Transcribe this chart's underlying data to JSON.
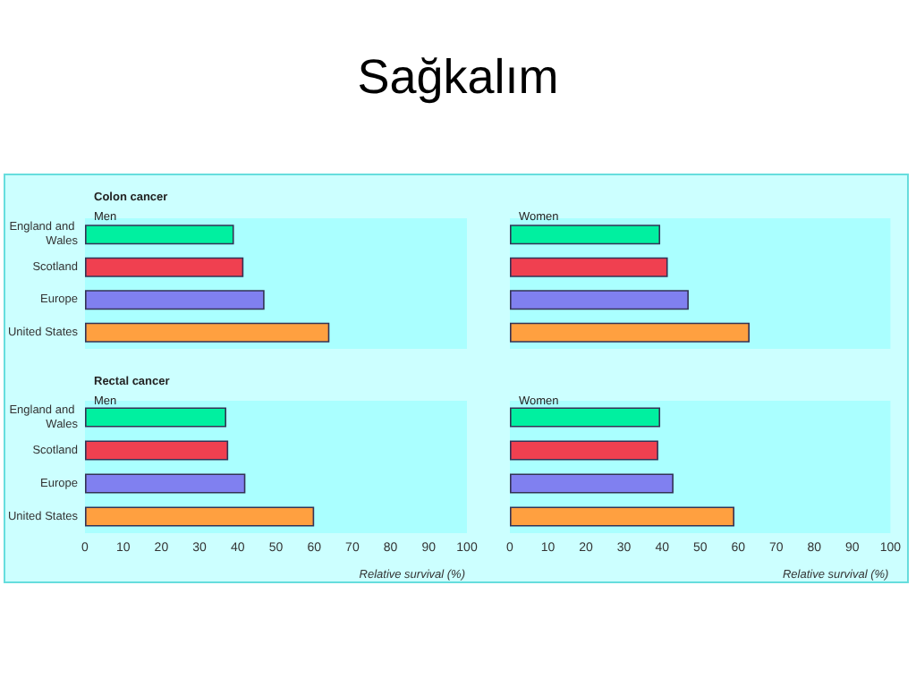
{
  "chart_data": [
    {
      "type": "bar",
      "orientation": "horizontal",
      "title": "Colon cancer",
      "subtitle": "Men",
      "annotations": [
        "Sağkalım"
      ],
      "categories": [
        "England and Wales",
        "Scotland",
        "Europe",
        "United States"
      ],
      "values": [
        39,
        41.5,
        47,
        64
      ],
      "colors": [
        "#00f0a0",
        "#f04050",
        "#8080f0",
        "#ffa040"
      ],
      "xlim": [
        0,
        100
      ],
      "tick_labels": "y"
    },
    {
      "type": "bar",
      "orientation": "horizontal",
      "subtitle": "Women",
      "categories": [
        "England and Wales",
        "Scotland",
        "Europe",
        "United States"
      ],
      "values": [
        39.5,
        41.5,
        47,
        63
      ],
      "colors": [
        "#00f0a0",
        "#f04050",
        "#8080f0",
        "#ffa040"
      ],
      "xlim": [
        0,
        100
      ],
      "tick_labels": false
    },
    {
      "type": "bar",
      "orientation": "horizontal",
      "title": "Rectal cancer",
      "subtitle": "Men",
      "xlabel": "Relative survival (%)",
      "categories": [
        "England and Wales",
        "Scotland",
        "Europe",
        "United States"
      ],
      "values": [
        37,
        37.5,
        42,
        60
      ],
      "colors": [
        "#00f0a0",
        "#f04050",
        "#8080f0",
        "#ffa040"
      ],
      "xlim": [
        0,
        100
      ],
      "xticks": [
        0,
        10,
        20,
        30,
        40,
        50,
        60,
        70,
        80,
        90,
        100
      ]
    },
    {
      "type": "bar",
      "orientation": "horizontal",
      "subtitle": "Women",
      "xlabel": "Relative survival (%)",
      "categories": [
        "England and Wales",
        "Scotland",
        "Europe",
        "United States"
      ],
      "values": [
        39.5,
        39,
        43,
        59
      ],
      "colors": [
        "#00f0a0",
        "#f04050",
        "#8080f0",
        "#ffa040"
      ],
      "xlim": [
        0,
        100
      ],
      "xticks": [
        0,
        10,
        20,
        30,
        40,
        50,
        60,
        70,
        80,
        90,
        100
      ],
      "tick_labels": "x"
    }
  ]
}
